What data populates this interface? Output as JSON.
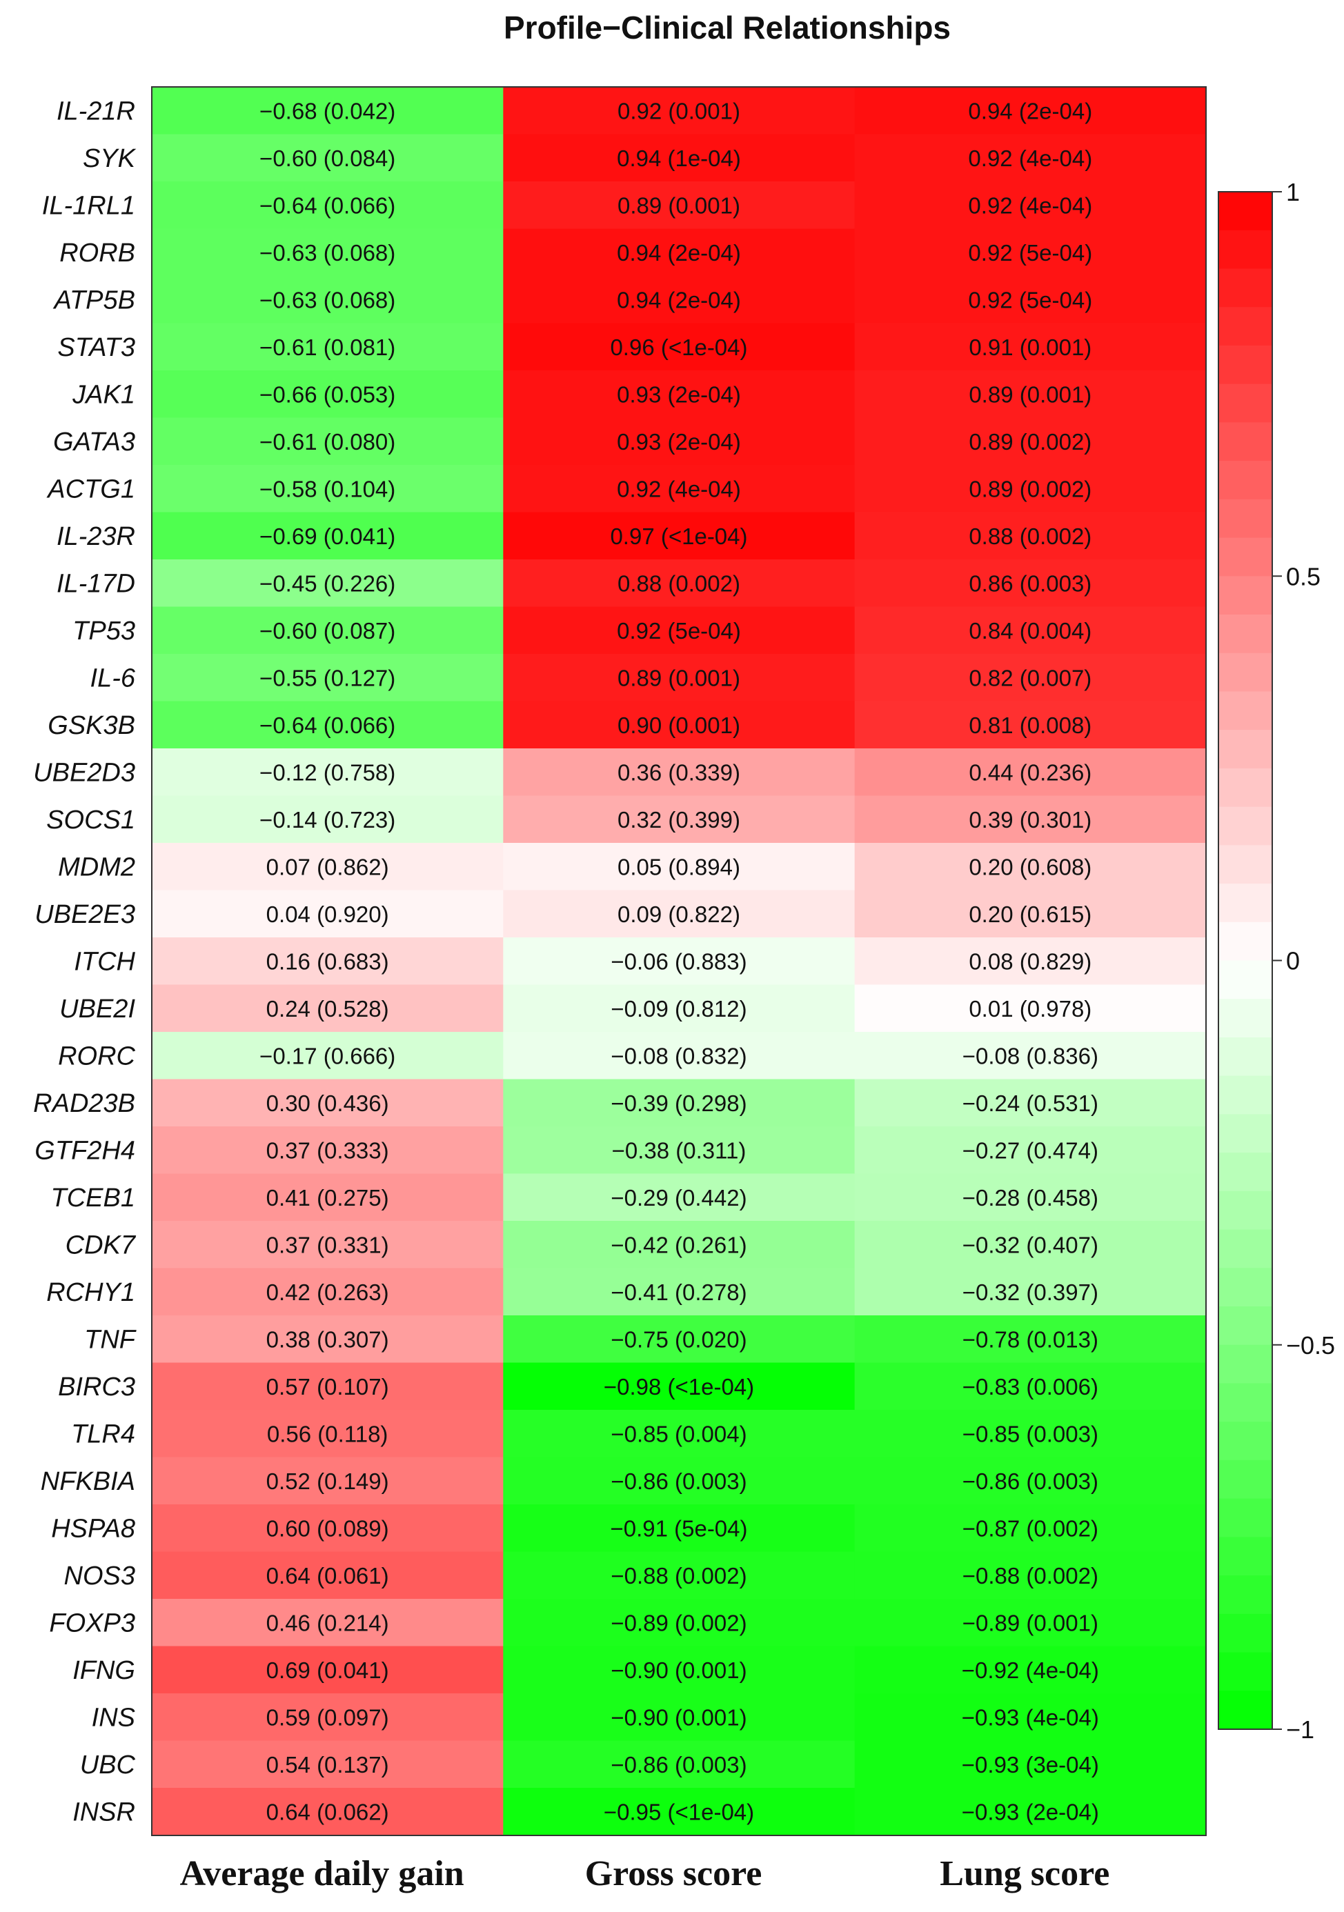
{
  "chart_data": {
    "type": "heatmap",
    "title": "Profile−Clinical Relationships",
    "columns": [
      "Average daily gain",
      "Gross score",
      "Lung score"
    ],
    "rows": [
      "IL-21R",
      "SYK",
      "IL-1RL1",
      "RORB",
      "ATP5B",
      "STAT3",
      "JAK1",
      "GATA3",
      "ACTG1",
      "IL-23R",
      "IL-17D",
      "TP53",
      "IL-6",
      "GSK3B",
      "UBE2D3",
      "SOCS1",
      "MDM2",
      "UBE2E3",
      "ITCH",
      "UBE2I",
      "RORC",
      "RAD23B",
      "GTF2H4",
      "TCEB1",
      "CDK7",
      "RCHY1",
      "TNF",
      "BIRC3",
      "TLR4",
      "NFKBIA",
      "HSPA8",
      "NOS3",
      "FOXP3",
      "IFNG",
      "INS",
      "UBC",
      "INSR"
    ],
    "values": [
      [
        -0.68,
        0.92,
        0.94
      ],
      [
        -0.6,
        0.94,
        0.92
      ],
      [
        -0.64,
        0.89,
        0.92
      ],
      [
        -0.63,
        0.94,
        0.92
      ],
      [
        -0.63,
        0.94,
        0.92
      ],
      [
        -0.61,
        0.96,
        0.91
      ],
      [
        -0.66,
        0.93,
        0.89
      ],
      [
        -0.61,
        0.93,
        0.89
      ],
      [
        -0.58,
        0.92,
        0.89
      ],
      [
        -0.69,
        0.97,
        0.88
      ],
      [
        -0.45,
        0.88,
        0.86
      ],
      [
        -0.6,
        0.92,
        0.84
      ],
      [
        -0.55,
        0.89,
        0.82
      ],
      [
        -0.64,
        0.9,
        0.81
      ],
      [
        -0.12,
        0.36,
        0.44
      ],
      [
        -0.14,
        0.32,
        0.39
      ],
      [
        0.07,
        0.05,
        0.2
      ],
      [
        0.04,
        0.09,
        0.2
      ],
      [
        0.16,
        -0.06,
        0.08
      ],
      [
        0.24,
        -0.09,
        0.01
      ],
      [
        -0.17,
        -0.08,
        -0.08
      ],
      [
        0.3,
        -0.39,
        -0.24
      ],
      [
        0.37,
        -0.38,
        -0.27
      ],
      [
        0.41,
        -0.29,
        -0.28
      ],
      [
        0.37,
        -0.42,
        -0.32
      ],
      [
        0.42,
        -0.41,
        -0.32
      ],
      [
        0.38,
        -0.75,
        -0.78
      ],
      [
        0.57,
        -0.98,
        -0.83
      ],
      [
        0.56,
        -0.85,
        -0.85
      ],
      [
        0.52,
        -0.86,
        -0.86
      ],
      [
        0.6,
        -0.91,
        -0.87
      ],
      [
        0.64,
        -0.88,
        -0.88
      ],
      [
        0.46,
        -0.89,
        -0.89
      ],
      [
        0.69,
        -0.9,
        -0.92
      ],
      [
        0.59,
        -0.9,
        -0.93
      ],
      [
        0.54,
        -0.86,
        -0.93
      ],
      [
        0.64,
        -0.95,
        -0.93
      ]
    ],
    "labels": [
      [
        "−0.68 (0.042)",
        "0.92 (0.001)",
        "0.94 (2e-04)"
      ],
      [
        "−0.60 (0.084)",
        "0.94 (1e-04)",
        "0.92 (4e-04)"
      ],
      [
        "−0.64 (0.066)",
        "0.89 (0.001)",
        "0.92 (4e-04)"
      ],
      [
        "−0.63 (0.068)",
        "0.94 (2e-04)",
        "0.92 (5e-04)"
      ],
      [
        "−0.63 (0.068)",
        "0.94 (2e-04)",
        "0.92 (5e-04)"
      ],
      [
        "−0.61 (0.081)",
        "0.96 (<1e-04)",
        "0.91 (0.001)"
      ],
      [
        "−0.66 (0.053)",
        "0.93 (2e-04)",
        "0.89 (0.001)"
      ],
      [
        "−0.61 (0.080)",
        "0.93 (2e-04)",
        "0.89 (0.002)"
      ],
      [
        "−0.58 (0.104)",
        "0.92 (4e-04)",
        "0.89 (0.002)"
      ],
      [
        "−0.69 (0.041)",
        "0.97 (<1e-04)",
        "0.88 (0.002)"
      ],
      [
        "−0.45 (0.226)",
        "0.88 (0.002)",
        "0.86 (0.003)"
      ],
      [
        "−0.60 (0.087)",
        "0.92 (5e-04)",
        "0.84 (0.004)"
      ],
      [
        "−0.55 (0.127)",
        "0.89 (0.001)",
        "0.82 (0.007)"
      ],
      [
        "−0.64 (0.066)",
        "0.90 (0.001)",
        "0.81 (0.008)"
      ],
      [
        "−0.12 (0.758)",
        "0.36 (0.339)",
        "0.44 (0.236)"
      ],
      [
        "−0.14 (0.723)",
        "0.32 (0.399)",
        "0.39 (0.301)"
      ],
      [
        "0.07 (0.862)",
        "0.05 (0.894)",
        "0.20 (0.608)"
      ],
      [
        "0.04 (0.920)",
        "0.09 (0.822)",
        "0.20 (0.615)"
      ],
      [
        "0.16 (0.683)",
        "−0.06 (0.883)",
        "0.08 (0.829)"
      ],
      [
        "0.24 (0.528)",
        "−0.09 (0.812)",
        "0.01 (0.978)"
      ],
      [
        "−0.17 (0.666)",
        "−0.08 (0.832)",
        "−0.08 (0.836)"
      ],
      [
        "0.30 (0.436)",
        "−0.39 (0.298)",
        "−0.24 (0.531)"
      ],
      [
        "0.37 (0.333)",
        "−0.38 (0.311)",
        "−0.27 (0.474)"
      ],
      [
        "0.41 (0.275)",
        "−0.29 (0.442)",
        "−0.28 (0.458)"
      ],
      [
        "0.37 (0.331)",
        "−0.42 (0.261)",
        "−0.32 (0.407)"
      ],
      [
        "0.42 (0.263)",
        "−0.41 (0.278)",
        "−0.32 (0.397)"
      ],
      [
        "0.38 (0.307)",
        "−0.75 (0.020)",
        "−0.78 (0.013)"
      ],
      [
        "0.57 (0.107)",
        "−0.98 (<1e-04)",
        "−0.83 (0.006)"
      ],
      [
        "0.56 (0.118)",
        "−0.85 (0.004)",
        "−0.85 (0.003)"
      ],
      [
        "0.52 (0.149)",
        "−0.86 (0.003)",
        "−0.86 (0.003)"
      ],
      [
        "0.60 (0.089)",
        "−0.91 (5e-04)",
        "−0.87 (0.002)"
      ],
      [
        "0.64 (0.061)",
        "−0.88 (0.002)",
        "−0.88 (0.002)"
      ],
      [
        "0.46 (0.214)",
        "−0.89 (0.002)",
        "−0.89 (0.001)"
      ],
      [
        "0.69 (0.041)",
        "−0.90 (0.001)",
        "−0.92 (4e-04)"
      ],
      [
        "0.59 (0.097)",
        "−0.90 (0.001)",
        "−0.93 (4e-04)"
      ],
      [
        "0.54 (0.137)",
        "−0.86 (0.003)",
        "−0.93 (3e-04)"
      ],
      [
        "0.64 (0.062)",
        "−0.95 (<1e-04)",
        "−0.93 (2e-04)"
      ]
    ],
    "color_scale": {
      "range": [
        -1,
        1
      ],
      "low_color": "#00ff00",
      "mid_color": "#ffffff",
      "high_color": "#ff0000",
      "ticks": [
        1,
        0.5,
        0,
        -0.5,
        -1
      ],
      "tick_labels": [
        "1",
        "0.5",
        "0",
        "−0.5",
        "−1"
      ],
      "legend_placement": "right"
    }
  }
}
